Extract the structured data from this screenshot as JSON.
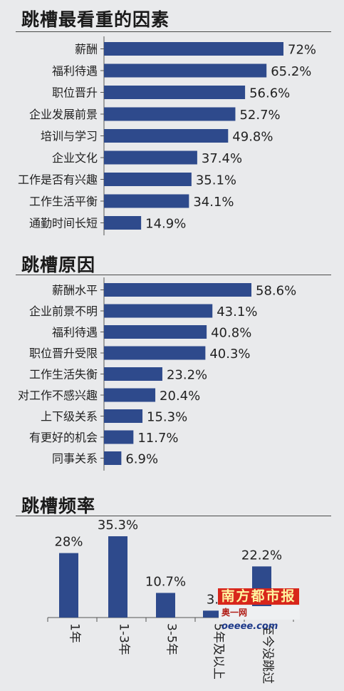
{
  "sections": {
    "factors_title": "跳槽最看重的因素",
    "reasons_title": "跳槽原因",
    "frequency_title": "跳槽频率"
  },
  "colors": {
    "bar": "#2e4a8c",
    "background": "#e9eaec",
    "axis": "#555555"
  },
  "chart_data": [
    {
      "type": "bar",
      "orientation": "horizontal",
      "title": "跳槽最看重的因素",
      "categories": [
        "薪酬",
        "福利待遇",
        "职位晋升",
        "企业发展前景",
        "培训与学习",
        "企业文化",
        "工作是否有兴趣",
        "工作生活平衡",
        "通勤时间长短"
      ],
      "values": [
        72,
        65.2,
        56.6,
        52.7,
        49.8,
        37.4,
        35.1,
        34.1,
        14.9
      ],
      "labels": [
        "72%",
        "65.2%",
        "56.6%",
        "52.7%",
        "49.8%",
        "37.4%",
        "35.1%",
        "34.1%",
        "14.9%"
      ],
      "unit": "%",
      "xlim": [
        0,
        72
      ]
    },
    {
      "type": "bar",
      "orientation": "horizontal",
      "title": "跳槽原因",
      "categories": [
        "薪酬水平",
        "企业前景不明",
        "福利待遇",
        "职位晋升受限",
        "工作生活失衡",
        "对工作不感兴趣",
        "上下级关系",
        "有更好的机会",
        "同事关系"
      ],
      "values": [
        58.6,
        43.1,
        40.8,
        40.3,
        23.2,
        20.4,
        15.3,
        11.7,
        6.9
      ],
      "labels": [
        "58.6%",
        "43.1%",
        "40.8%",
        "40.3%",
        "23.2%",
        "20.4%",
        "15.3%",
        "11.7%",
        "6.9%"
      ],
      "unit": "%",
      "xlim": [
        0,
        58.6
      ]
    },
    {
      "type": "bar",
      "orientation": "vertical",
      "title": "跳槽频率",
      "categories": [
        "1年",
        "1-3年",
        "3-5年",
        "5年及以上",
        "至今没跳过"
      ],
      "values": [
        28,
        35.3,
        10.7,
        3.0,
        22.2
      ],
      "labels": [
        "28%",
        "35.3%",
        "10.7%",
        "3.",
        "22.2%"
      ],
      "unit": "%",
      "ylim": [
        0,
        35.3
      ]
    }
  ],
  "watermark": {
    "line1": "南方都市报",
    "line2_prefix": "奥一网",
    "line2_domain": "oeeee.com"
  }
}
